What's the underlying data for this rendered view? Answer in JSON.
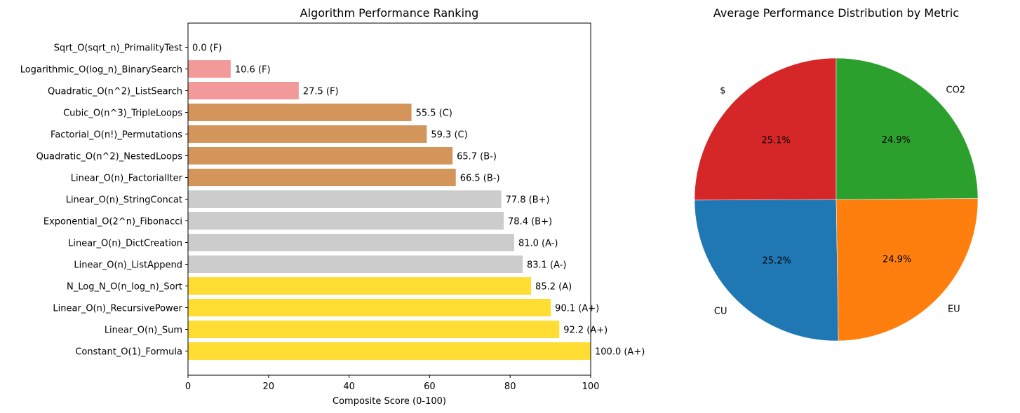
{
  "chart_data": [
    {
      "type": "bar",
      "orientation": "horizontal",
      "title": "Algorithm Performance Ranking",
      "xlabel": "Composite Score (0-100)",
      "ylabel": "",
      "xlim": [
        0,
        100
      ],
      "xticks": [
        "0",
        "20",
        "40",
        "60",
        "80",
        "100"
      ],
      "categories": [
        "Constant_O(1)_Formula",
        "Linear_O(n)_Sum",
        "Linear_O(n)_RecursivePower",
        "N_Log_N_O(n_log_n)_Sort",
        "Linear_O(n)_ListAppend",
        "Linear_O(n)_DictCreation",
        "Exponential_O(2^n)_Fibonacci",
        "Linear_O(n)_StringConcat",
        "Linear_O(n)_FactorialIter",
        "Quadratic_O(n^2)_NestedLoops",
        "Factorial_O(n!)_Permutations",
        "Cubic_O(n^3)_TripleLoops",
        "Quadratic_O(n^2)_ListSearch",
        "Logarithmic_O(log_n)_BinarySearch",
        "Sqrt_O(sqrt_n)_PrimalityTest"
      ],
      "values": [
        100.0,
        92.2,
        90.1,
        85.2,
        83.1,
        81.0,
        78.4,
        77.8,
        66.5,
        65.7,
        59.3,
        55.5,
        27.5,
        10.6,
        0.0
      ],
      "data_labels": [
        "100.0 (A+)",
        "92.2 (A+)",
        "90.1 (A+)",
        "85.2 (A)",
        "83.1 (A-)",
        "81.0 (A-)",
        "78.4 (B+)",
        "77.8 (B+)",
        "66.5 (B-)",
        "65.7 (B-)",
        "59.3 (C)",
        "55.5 (C)",
        "27.5 (F)",
        "10.6 (F)",
        "0.0 (F)"
      ],
      "grades": [
        "A+",
        "A+",
        "A+",
        "A",
        "A-",
        "A-",
        "B+",
        "B+",
        "B-",
        "B-",
        "C",
        "C",
        "F",
        "F",
        "F"
      ],
      "grade_colors": {
        "A+": "#ffdd33",
        "A": "#ffdd33",
        "A-": "#cccccc",
        "B+": "#cccccc",
        "B-": "#d4955a",
        "C": "#d4955a",
        "F": "#f29a99"
      },
      "grid": false
    },
    {
      "type": "pie",
      "title": "Average Performance Distribution by Metric",
      "labels": [
        "$",
        "CU",
        "EU",
        "CO2"
      ],
      "values": [
        25.1,
        25.2,
        24.9,
        24.9
      ],
      "pct_labels": [
        "25.1%",
        "25.2%",
        "24.9%",
        "24.9%"
      ],
      "colors": [
        "#d62728",
        "#1f77b4",
        "#ff7f0e",
        "#2ca02c"
      ],
      "start_angle_deg": 90,
      "direction": "counterclockwise"
    }
  ]
}
